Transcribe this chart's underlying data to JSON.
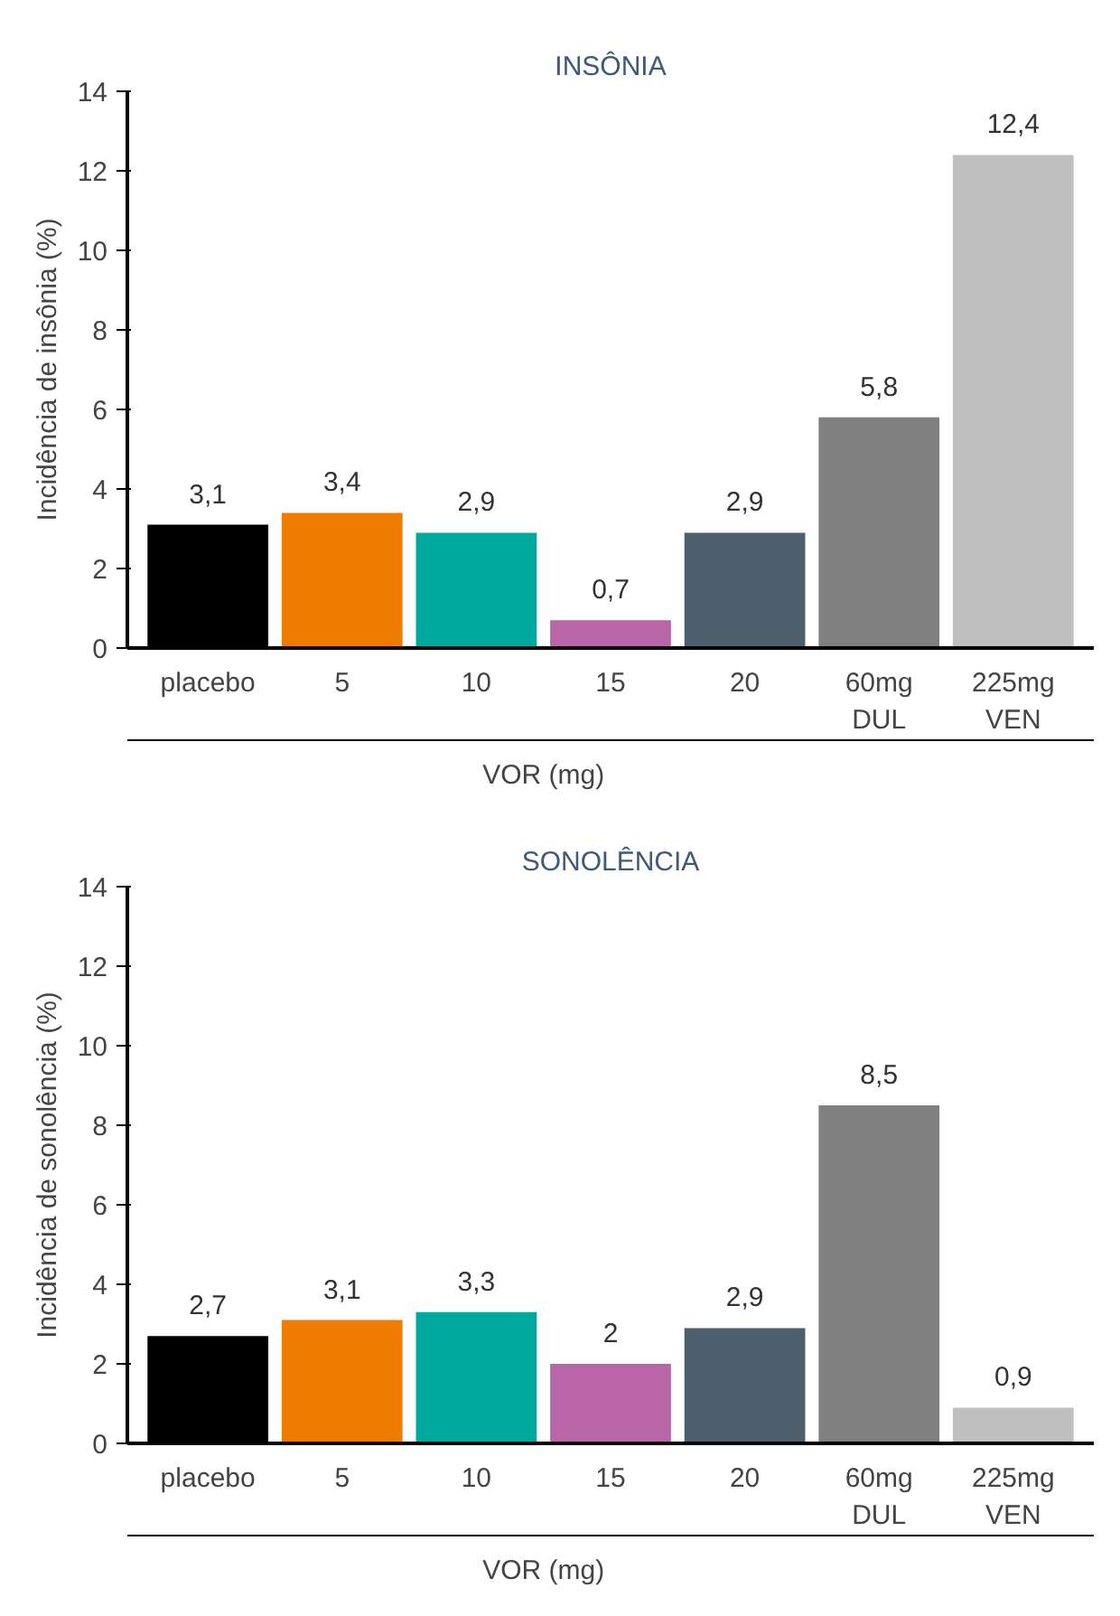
{
  "chart_data": [
    {
      "type": "bar",
      "title": "INSÔNIA",
      "ylabel": "Incidência de insônia (%)",
      "categories": [
        "placebo",
        "5",
        "10",
        "15",
        "20",
        "60mg\nDUL",
        "225mg\nVEN"
      ],
      "values": [
        3.1,
        3.4,
        2.9,
        0.7,
        2.9,
        5.8,
        12.4
      ],
      "value_labels": [
        "3,1",
        "3,4",
        "2,9",
        "0,7",
        "2,9",
        "5,8",
        "12,4"
      ],
      "colors": [
        "#000000",
        "#ef7d00",
        "#00a99d",
        "#b966a9",
        "#4d5e6d",
        "#808080",
        "#c0c0c0"
      ],
      "ylim": [
        0,
        14
      ],
      "yticks": [
        0,
        2,
        4,
        6,
        8,
        10,
        12,
        14
      ],
      "annotations": [
        "VOR (mg)"
      ]
    },
    {
      "type": "bar",
      "title": "SONOLÊNCIA",
      "ylabel": "Incidência de sonolência (%)",
      "categories": [
        "placebo",
        "5",
        "10",
        "15",
        "20",
        "60mg\nDUL",
        "225mg\nVEN"
      ],
      "values": [
        2.7,
        3.1,
        3.3,
        2,
        2.9,
        8.5,
        0.9
      ],
      "value_labels": [
        "2,7",
        "3,1",
        "3,3",
        "2",
        "2,9",
        "8,5",
        "0,9"
      ],
      "colors": [
        "#000000",
        "#ef7d00",
        "#00a99d",
        "#b966a9",
        "#4d5e6d",
        "#808080",
        "#c0c0c0"
      ],
      "ylim": [
        0,
        14
      ],
      "yticks": [
        0,
        2,
        4,
        6,
        8,
        10,
        12,
        14
      ],
      "annotations": [
        "VOR (mg)"
      ]
    }
  ]
}
